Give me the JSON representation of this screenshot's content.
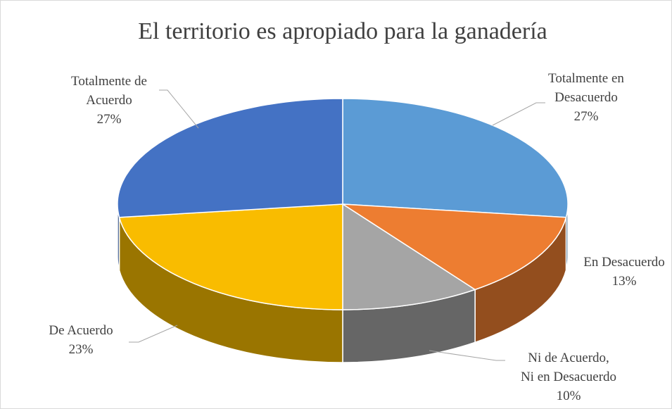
{
  "chart_data": {
    "type": "pie",
    "title": "El territorio es apropiado para la ganadería",
    "categories": [
      "Totalmente en\nDesacuerdo",
      "En Desacuerdo",
      "Ni de Acuerdo,\nNi en Desacuerdo",
      "De Acuerdo",
      "Totalmente de\nAcuerdo"
    ],
    "values": [
      27,
      13,
      10,
      23,
      27
    ],
    "value_labels": [
      "27%",
      "13%",
      "10%",
      "23%",
      "27%"
    ],
    "colors": [
      "#5b9bd5",
      "#ed7d31",
      "#a5a5a5",
      "#f9bc00",
      "#4472c4"
    ]
  }
}
